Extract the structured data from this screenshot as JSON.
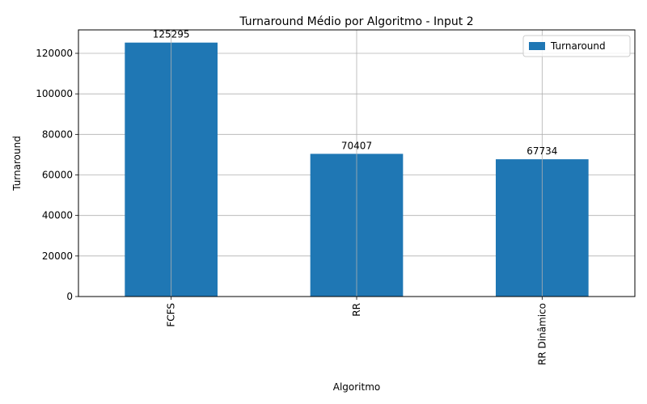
{
  "chart_data": {
    "type": "bar",
    "title": "Turnaround Médio por Algoritmo - Input 2",
    "xlabel": "Algoritmo",
    "ylabel": "Turnaround",
    "categories": [
      "FCFS",
      "RR",
      "RR Dinâmico"
    ],
    "series": [
      {
        "name": "Turnaround",
        "values": [
          125295,
          70407,
          67734
        ],
        "color": "#1f77b4"
      }
    ],
    "data_labels": [
      "125295",
      "70407",
      "67734"
    ],
    "ylim": [
      0,
      131560
    ],
    "yticks": [
      0,
      20000,
      40000,
      60000,
      80000,
      100000,
      120000
    ],
    "ytick_labels": [
      "0",
      "20000",
      "40000",
      "60000",
      "80000",
      "100000",
      "120000"
    ],
    "grid": true,
    "legend_position": "top-right",
    "xtick_rotation": "vertical"
  }
}
